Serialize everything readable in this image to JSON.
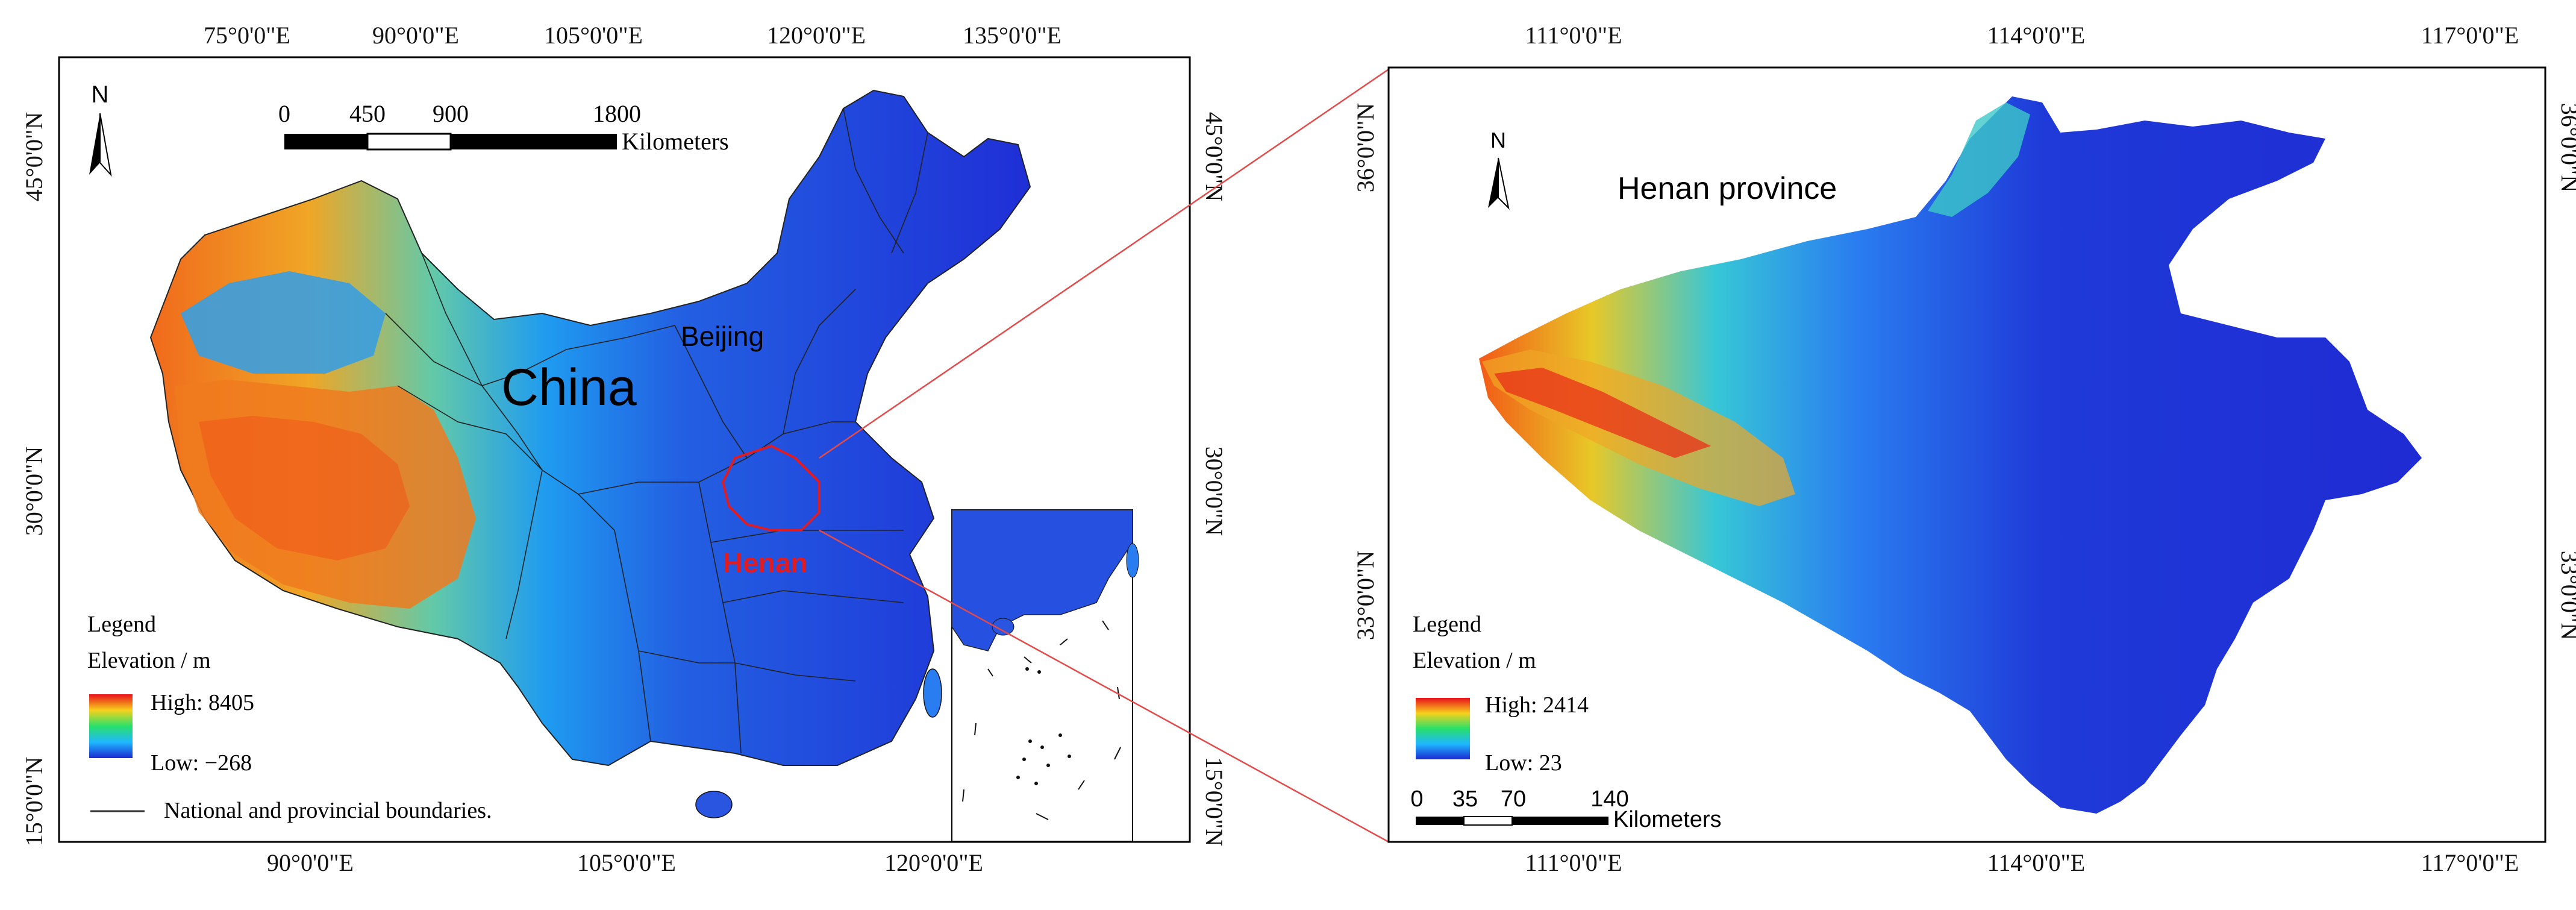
{
  "left_map": {
    "top_ticks": [
      "75°0'0\"E",
      "90°0'0\"E",
      "105°0'0\"E",
      "120°0'0\"E",
      "135°0'0\"E"
    ],
    "bottom_ticks": [
      "90°0'0\"E",
      "105°0'0\"E",
      "120°0'0\"E"
    ],
    "left_ticks": [
      "45°0'0\"N",
      "30°0'0\"N",
      "15°0'0\"N"
    ],
    "right_ticks": [
      "45°0'0\"N",
      "30°0'0\"N",
      "15°0'0\"N"
    ],
    "north_label": "N",
    "scalebar": {
      "labels": [
        "0",
        "450",
        "900",
        "1800"
      ],
      "unit": "Kilometers"
    },
    "labels": {
      "country": "China",
      "capital": "Beijing",
      "province": "Henan"
    },
    "legend": {
      "title": "Legend",
      "subtitle": "Elevation / m",
      "high": "High: 8405",
      "low": "Low: −268",
      "boundary": "National and provincial boundaries."
    }
  },
  "right_map": {
    "top_ticks": [
      "111°0'0\"E",
      "114°0'0\"E",
      "117°0'0\"E"
    ],
    "bottom_ticks": [
      "111°0'0\"E",
      "114°0'0\"E",
      "117°0'0\"E"
    ],
    "left_ticks": [
      "36°0'0\"N",
      "33°0'0\"N"
    ],
    "right_ticks": [
      "36°0'0\"N",
      "33°0'0\"N"
    ],
    "north_label": "N",
    "title": "Henan province",
    "scalebar": {
      "labels": [
        "0",
        "35",
        "70",
        "140"
      ],
      "unit": "Kilometers"
    },
    "legend": {
      "title": "Legend",
      "subtitle": "Elevation / m",
      "high": "High: 2414",
      "low": "Low: 23"
    }
  },
  "colors": {
    "elev_low": "#1f2fd6",
    "elev_mid": "#2f9bff",
    "elev_high": "#f02a10",
    "connector": "#e34a4a",
    "henan_outline": "#e01b22"
  }
}
